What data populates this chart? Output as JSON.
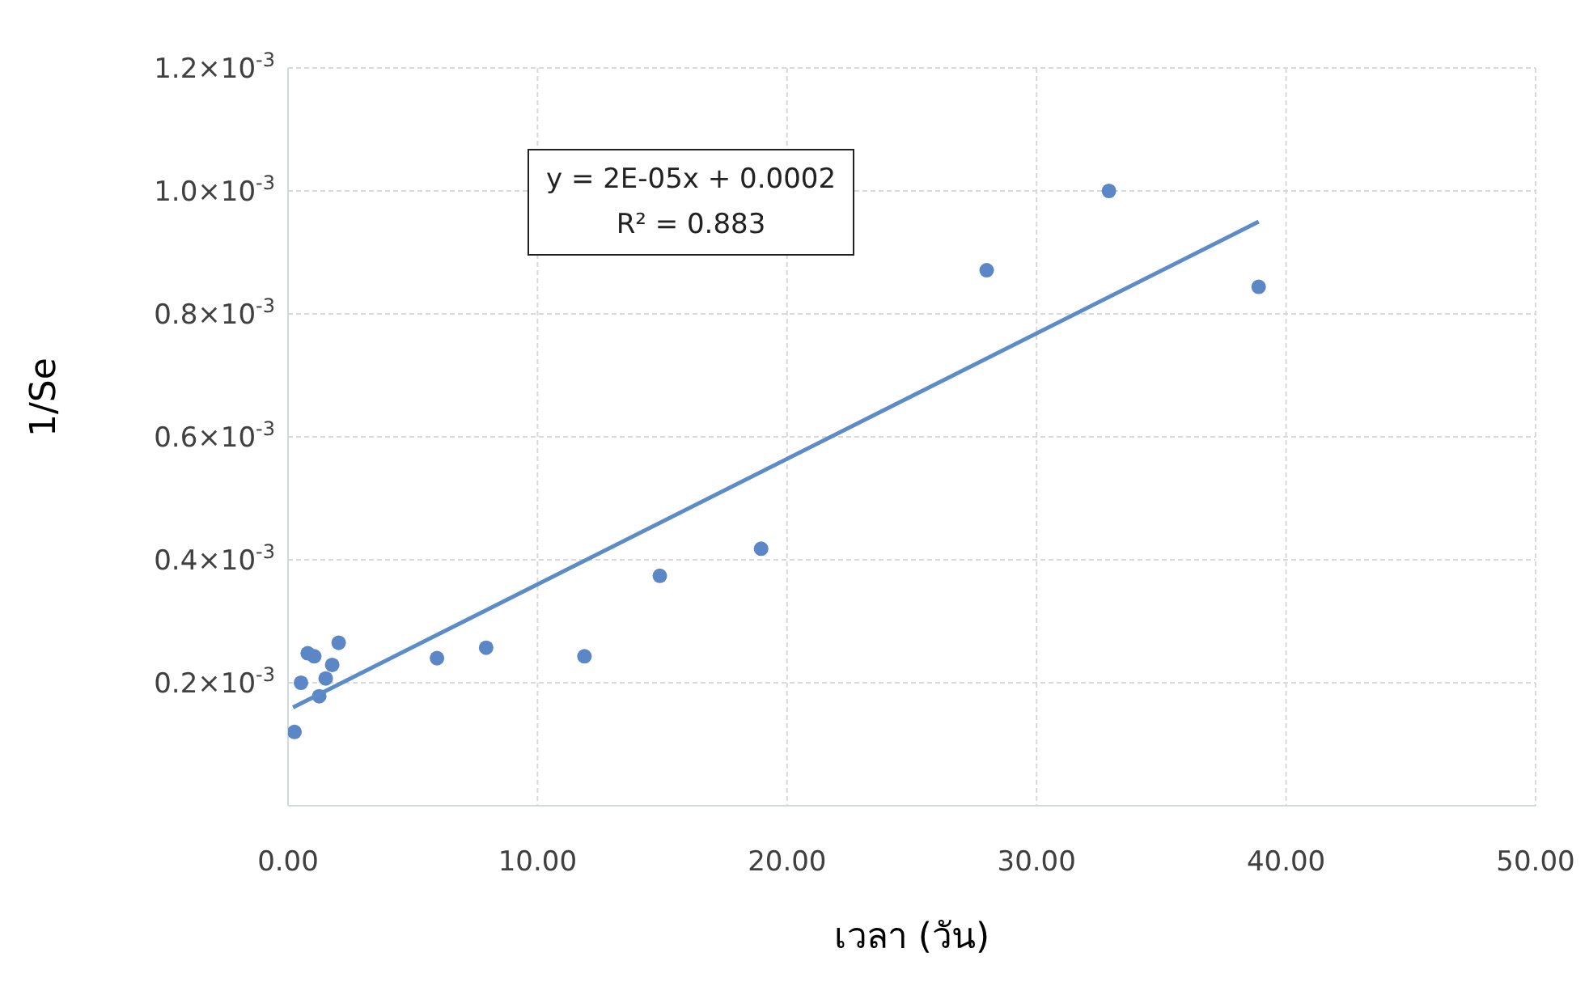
{
  "chart_data": {
    "type": "scatter",
    "xlabel": "เวลา (วัน)",
    "ylabel": "1/Se",
    "annotations": [
      "y = 2E-05x + 0.0002",
      "R² = 0.883"
    ],
    "xlim": [
      0,
      50
    ],
    "xticks": [
      {
        "value": 0,
        "label": "0.00"
      },
      {
        "value": 10,
        "label": "10.00"
      },
      {
        "value": 20,
        "label": "20.00"
      },
      {
        "value": 30,
        "label": "30.00"
      },
      {
        "value": 40,
        "label": "40.00"
      },
      {
        "value": 50,
        "label": "50.00"
      }
    ],
    "ylim": [
      0,
      0.0012
    ],
    "yticks": [
      {
        "value": 0.0002,
        "label": "0.2×10$^{-3}$"
      },
      {
        "value": 0.0004,
        "label": "0.4×10$^{-3}$"
      },
      {
        "value": 0.0006,
        "label": "0.6×10$^{-3}$"
      },
      {
        "value": 0.0008,
        "label": "0.8×10$^{-3}$"
      },
      {
        "value": 0.001,
        "label": "1.0×10$^{-3}$"
      },
      {
        "value": 0.0012,
        "label": "1.2×10$^{-3}$"
      }
    ],
    "grid": true,
    "series": [
      {
        "color": "#5b87c6",
        "marker": "circle",
        "x": [
          0.26,
          0.52,
          0.79,
          1.05,
          1.25,
          1.51,
          1.77,
          2.03,
          5.97,
          7.94,
          11.88,
          14.9,
          18.96,
          28.0,
          32.9,
          38.9
        ],
        "values": [
          0.00012,
          0.0002,
          0.000248,
          0.000243,
          0.000178,
          0.000207,
          0.000229,
          0.000265,
          0.00024,
          0.000257,
          0.000243,
          0.000374,
          0.000418,
          0.000871,
          0.001,
          0.000844
        ]
      },
      {
        "type": "line",
        "marker": "none",
        "color": "#5b8cc8",
        "x": [
          0.2,
          38.9
        ],
        "values": [
          0.00016,
          0.00095
        ]
      }
    ]
  }
}
